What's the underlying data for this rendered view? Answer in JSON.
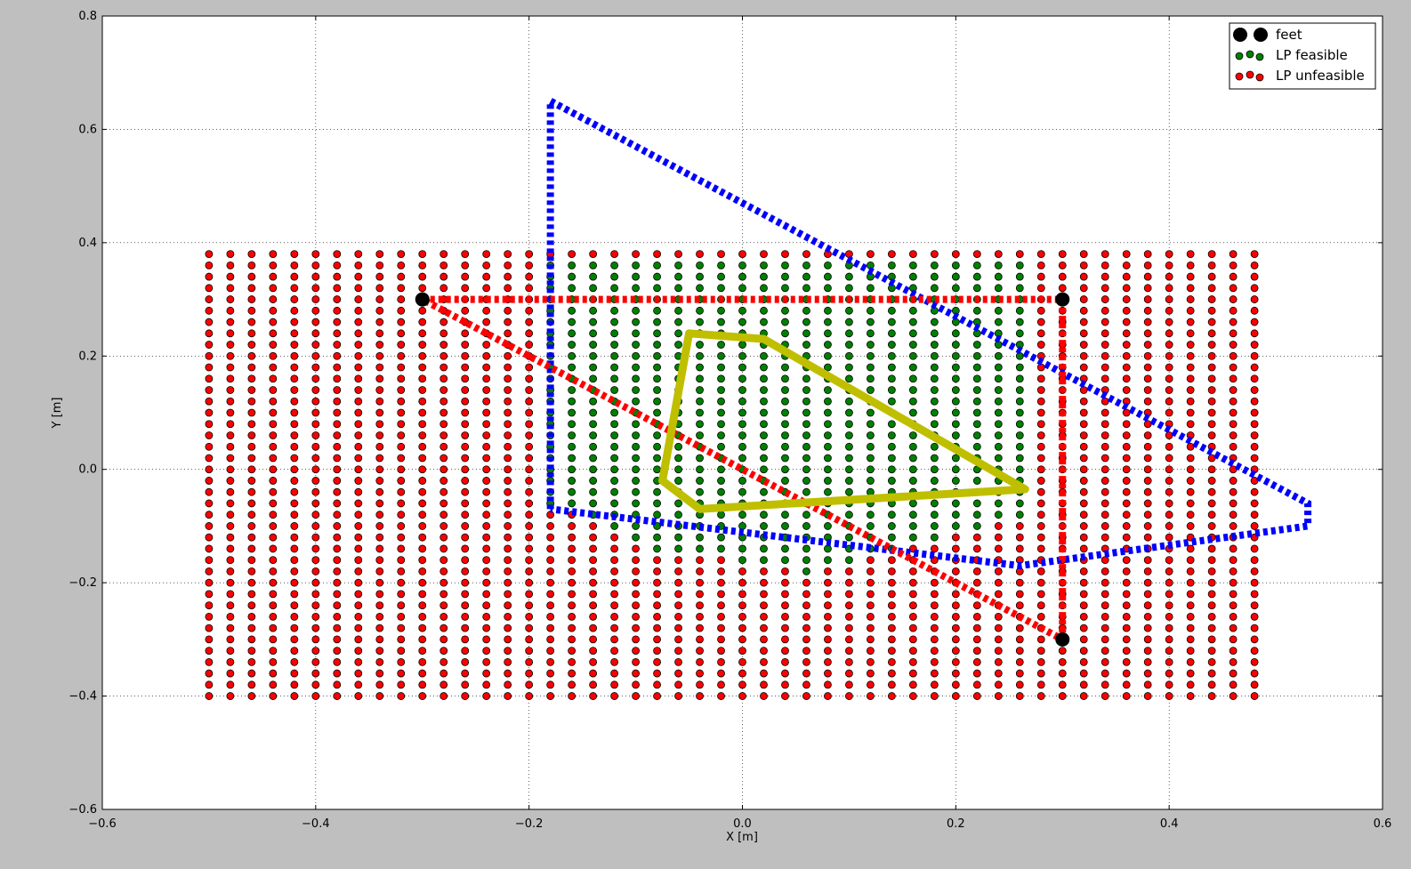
{
  "chart_data": {
    "type": "scatter",
    "title": "",
    "xlabel": "X [m]",
    "ylabel": "Y [m]",
    "xlim": [
      -0.6,
      0.6
    ],
    "ylim": [
      -0.6,
      0.8
    ],
    "grid": true,
    "legend_position": "top-right",
    "xticks": [
      "−0.6",
      "−0.4",
      "−0.2",
      "0.0",
      "0.2",
      "0.4",
      "0.6"
    ],
    "yticks": [
      "−0.6",
      "−0.4",
      "−0.2",
      "0.0",
      "0.2",
      "0.4",
      "0.6",
      "0.8"
    ],
    "tick_values_x": [
      -0.6,
      -0.4,
      -0.2,
      0.0,
      0.2,
      0.4,
      0.6
    ],
    "tick_values_y": [
      -0.6,
      -0.4,
      -0.2,
      0.0,
      0.2,
      0.4,
      0.6,
      0.8
    ],
    "grid_points": {
      "x_start": -0.5,
      "x_end": 0.48,
      "x_step": 0.02,
      "y_start": -0.4,
      "y_end": 0.38,
      "y_step": 0.02
    },
    "feasible_region": [
      [
        -0.18,
        0.38
      ],
      [
        0.28,
        0.38
      ],
      [
        0.28,
        -0.08
      ],
      [
        0.18,
        -0.12
      ],
      [
        0.06,
        -0.18
      ],
      [
        -0.08,
        -0.14
      ],
      [
        -0.18,
        -0.06
      ]
    ],
    "series": [
      {
        "name": "feet",
        "marker": "circle",
        "color": "#000000",
        "points": [
          [
            -0.3,
            0.3
          ],
          [
            0.3,
            0.3
          ],
          [
            0.3,
            -0.3
          ]
        ]
      },
      {
        "name": "LP feasible",
        "marker": "circle",
        "color": "#008000",
        "points": "grid points inside feasible_region"
      },
      {
        "name": "LP unfeasible",
        "marker": "circle",
        "color": "#ff0000",
        "points": "grid points outside feasible_region"
      },
      {
        "style": "dotted",
        "color": "#0000ff",
        "points": [
          [
            -0.18,
            -0.07
          ],
          [
            -0.18,
            0.65
          ],
          [
            0.53,
            -0.06
          ],
          [
            0.53,
            -0.1
          ],
          [
            0.26,
            -0.17
          ],
          [
            -0.18,
            -0.07
          ]
        ]
      },
      {
        "style": "dotted",
        "color": "#ff0000",
        "points": [
          [
            -0.3,
            0.3
          ],
          [
            0.3,
            0.3
          ],
          [
            0.3,
            -0.3
          ],
          [
            -0.3,
            0.3
          ]
        ]
      },
      {
        "style": "solid",
        "color": "#bfbf00",
        "points": [
          [
            -0.05,
            0.24
          ],
          [
            0.02,
            0.23
          ],
          [
            0.265,
            -0.035
          ],
          [
            -0.04,
            -0.07
          ],
          [
            -0.075,
            -0.02
          ],
          [
            -0.05,
            0.24
          ]
        ]
      }
    ]
  }
}
